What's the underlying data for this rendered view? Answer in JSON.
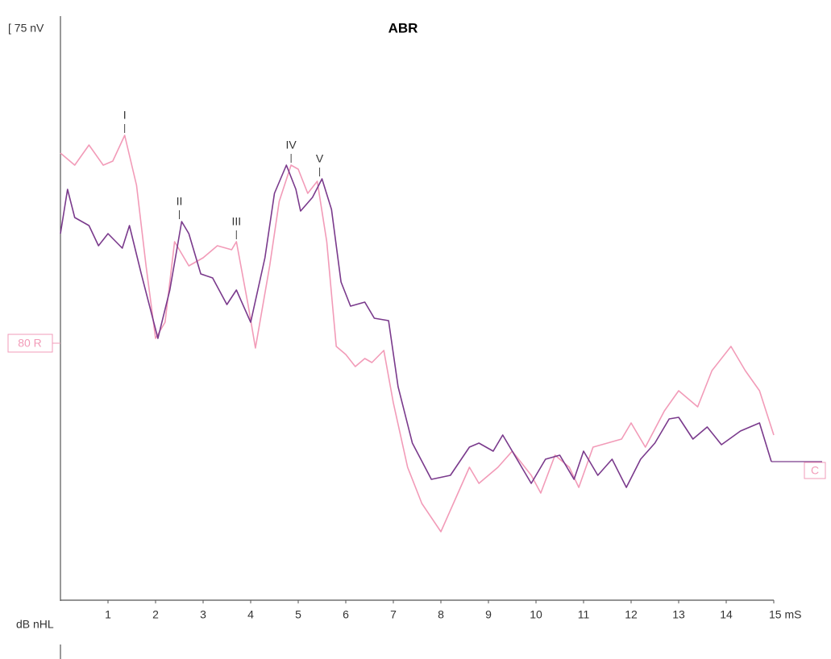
{
  "chart_data": {
    "type": "line",
    "title": "ABR",
    "scale_label": "[ 75 nV",
    "trace_label": "80 R",
    "end_label": "C",
    "unit_label": "dB nHL",
    "xlim": [
      0,
      15
    ],
    "ylim": [
      0,
      725
    ],
    "xticks": [
      1,
      2,
      3,
      4,
      5,
      6,
      7,
      8,
      9,
      10,
      11,
      12,
      13,
      14,
      {
        "value": 15,
        "label": "15 mS"
      }
    ],
    "series": [
      {
        "color": "#f29bb8",
        "x": [
          0,
          0.3,
          0.6,
          0.9,
          1.1,
          1.35,
          1.6,
          1.8,
          2.0,
          2.2,
          2.4,
          2.7,
          3.0,
          3.3,
          3.6,
          3.7,
          3.95,
          4.1,
          4.4,
          4.6,
          4.85,
          5.0,
          5.2,
          5.4,
          5.6,
          5.8,
          6.0,
          6.2,
          6.4,
          6.55,
          6.8,
          7.0,
          7.3,
          7.6,
          8.0,
          8.3,
          8.6,
          8.8,
          9.2,
          9.5,
          9.9,
          10.1,
          10.4,
          10.7,
          10.9,
          11.2,
          11.5,
          11.8,
          12.0,
          12.3,
          12.7,
          13.0,
          13.2,
          13.4,
          13.7,
          14.1,
          14.4,
          14.7,
          15
        ],
        "values": [
          555,
          540,
          565,
          540,
          545,
          577,
          515,
          415,
          325,
          345,
          445,
          415,
          425,
          440,
          435,
          445,
          365,
          313,
          415,
          495,
          540,
          535,
          505,
          520,
          445,
          315,
          305,
          290,
          300,
          295,
          310,
          245,
          165,
          120,
          85,
          125,
          165,
          145,
          165,
          185,
          155,
          133,
          180,
          165,
          140,
          190,
          195,
          200,
          220,
          190,
          235,
          260,
          250,
          240,
          285,
          315,
          285,
          260,
          205
        ]
      },
      {
        "color": "#7a3a8c",
        "x": [
          0,
          0.15,
          0.3,
          0.6,
          0.8,
          1.0,
          1.3,
          1.45,
          1.7,
          2.05,
          2.3,
          2.55,
          2.7,
          2.95,
          3.2,
          3.5,
          3.7,
          4.0,
          4.3,
          4.5,
          4.75,
          4.95,
          5.05,
          5.3,
          5.5,
          5.7,
          5.9,
          6.1,
          6.4,
          6.6,
          6.9,
          7.1,
          7.4,
          7.8,
          8.2,
          8.6,
          8.8,
          9.1,
          9.3,
          9.6,
          9.9,
          10.2,
          10.5,
          10.8,
          11.0,
          11.3,
          11.6,
          11.9,
          12.2,
          12.5,
          12.8,
          13.0,
          13.3,
          13.6,
          13.9,
          14.3,
          14.7,
          14.95
        ],
        "values": [
          455,
          510,
          475,
          465,
          440,
          455,
          437,
          465,
          405,
          325,
          385,
          470,
          455,
          405,
          400,
          367,
          385,
          345,
          425,
          505,
          540,
          510,
          483,
          500,
          523,
          485,
          395,
          365,
          370,
          350,
          347,
          265,
          195,
          150,
          155,
          190,
          195,
          185,
          205,
          175,
          145,
          175,
          180,
          150,
          185,
          155,
          175,
          140,
          175,
          195,
          225,
          227,
          200,
          215,
          193,
          210,
          220,
          172
        ]
      }
    ],
    "annotations": [
      {
        "text": "I",
        "x": 1.35,
        "y": 577
      },
      {
        "text": "II",
        "x": 2.5,
        "y": 470
      },
      {
        "text": "III",
        "x": 3.7,
        "y": 445
      },
      {
        "text": "IV",
        "x": 4.85,
        "y": 540
      },
      {
        "text": "V",
        "x": 5.45,
        "y": 523
      }
    ]
  }
}
